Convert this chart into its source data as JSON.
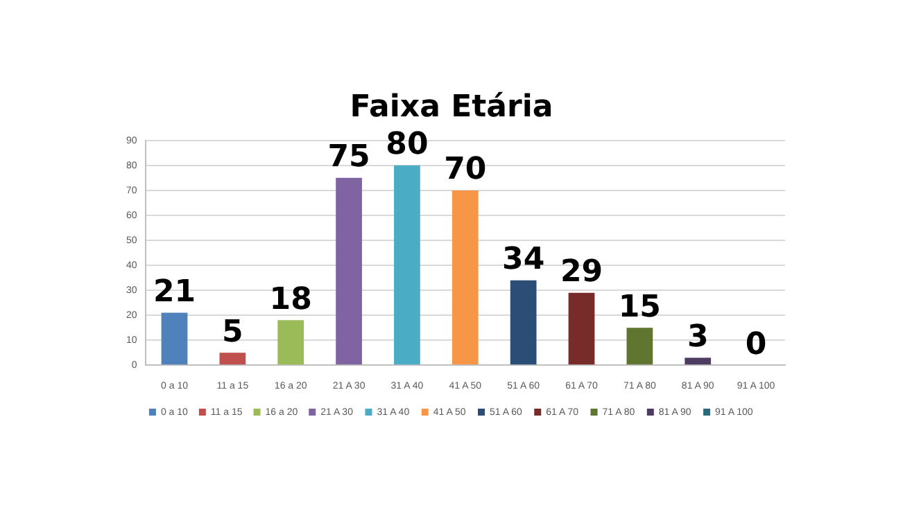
{
  "chart_data": {
    "type": "bar",
    "title": "Faixa Etária",
    "categories": [
      "0 a 10",
      "11 a 15",
      "16 a 20",
      "21 A 30",
      "31 A 40",
      "41 A 50",
      "51 A 60",
      "61 A 70",
      "71 A 80",
      "81 A 90",
      "91 A 100"
    ],
    "series": [
      {
        "name": "0 a 10",
        "color": "#4f81bd",
        "values": [
          21,
          null,
          null,
          null,
          null,
          null,
          null,
          null,
          null,
          null,
          null
        ]
      },
      {
        "name": "11 a 15",
        "color": "#c0504d",
        "values": [
          null,
          5,
          null,
          null,
          null,
          null,
          null,
          null,
          null,
          null,
          null
        ]
      },
      {
        "name": "16 a 20",
        "color": "#9bbb59",
        "values": [
          null,
          null,
          18,
          null,
          null,
          null,
          null,
          null,
          null,
          null,
          null
        ]
      },
      {
        "name": "21 A 30",
        "color": "#8064a2",
        "values": [
          null,
          null,
          null,
          75,
          null,
          null,
          null,
          null,
          null,
          null,
          null
        ]
      },
      {
        "name": "31 A 40",
        "color": "#4bacc6",
        "values": [
          null,
          null,
          null,
          null,
          80,
          null,
          null,
          null,
          null,
          null,
          null
        ]
      },
      {
        "name": "41 A 50",
        "color": "#f79646",
        "values": [
          null,
          null,
          null,
          null,
          null,
          70,
          null,
          null,
          null,
          null,
          null
        ]
      },
      {
        "name": "51 A 60",
        "color": "#2c4d75",
        "values": [
          null,
          null,
          null,
          null,
          null,
          null,
          34,
          null,
          null,
          null,
          null
        ]
      },
      {
        "name": "61 A 70",
        "color": "#772c2a",
        "values": [
          null,
          null,
          null,
          null,
          null,
          null,
          null,
          29,
          null,
          null,
          null
        ]
      },
      {
        "name": "71 A 80",
        "color": "#5f7530",
        "values": [
          null,
          null,
          null,
          null,
          null,
          null,
          null,
          null,
          15,
          null,
          null
        ]
      },
      {
        "name": "81 A 90",
        "color": "#4d3b62",
        "values": [
          null,
          null,
          null,
          null,
          null,
          null,
          null,
          null,
          null,
          3,
          null
        ]
      },
      {
        "name": "91 A 100",
        "color": "#276a7c",
        "values": [
          null,
          null,
          null,
          null,
          null,
          null,
          null,
          null,
          null,
          null,
          0
        ]
      }
    ],
    "ylim": [
      0,
      90
    ],
    "yticks": [
      0,
      10,
      20,
      30,
      40,
      50,
      60,
      70,
      80,
      90
    ],
    "grid": "y",
    "legend": "bottom",
    "data_labels": true
  }
}
